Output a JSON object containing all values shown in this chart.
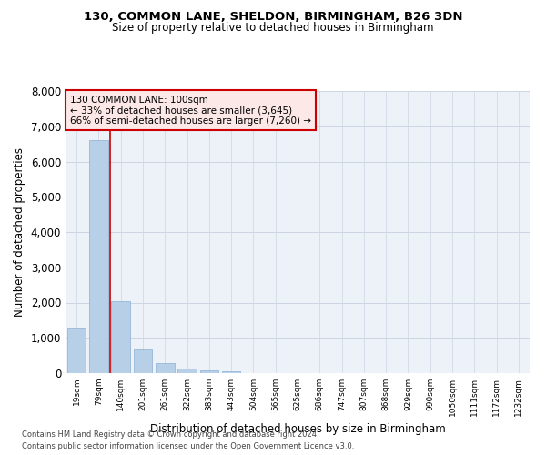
{
  "title1": "130, COMMON LANE, SHELDON, BIRMINGHAM, B26 3DN",
  "title2": "Size of property relative to detached houses in Birmingham",
  "xlabel": "Distribution of detached houses by size in Birmingham",
  "ylabel": "Number of detached properties",
  "footer1": "Contains HM Land Registry data © Crown copyright and database right 2024.",
  "footer2": "Contains public sector information licensed under the Open Government Licence v3.0.",
  "annotation_title": "130 COMMON LANE: 100sqm",
  "annotation_line1": "← 33% of detached houses are smaller (3,645)",
  "annotation_line2": "66% of semi-detached houses are larger (7,260) →",
  "bar_labels": [
    "19sqm",
    "79sqm",
    "140sqm",
    "201sqm",
    "261sqm",
    "322sqm",
    "383sqm",
    "443sqm",
    "504sqm",
    "565sqm",
    "625sqm",
    "686sqm",
    "747sqm",
    "807sqm",
    "868sqm",
    "929sqm",
    "990sqm",
    "1050sqm",
    "1111sqm",
    "1172sqm",
    "1232sqm"
  ],
  "bar_values": [
    1300,
    6600,
    2050,
    680,
    290,
    130,
    80,
    60,
    0,
    0,
    0,
    0,
    0,
    0,
    0,
    0,
    0,
    0,
    0,
    0,
    0
  ],
  "bar_color": "#b8cfe8",
  "bar_edge_color": "#8bafd4",
  "vline_color": "#cc0000",
  "ylim": [
    0,
    8000
  ],
  "yticks": [
    0,
    1000,
    2000,
    3000,
    4000,
    5000,
    6000,
    7000,
    8000
  ],
  "grid_color": "#ccd5e3",
  "bg_color": "#edf2f9",
  "annotation_box_facecolor": "#fde8e8",
  "annotation_box_edgecolor": "#cc0000",
  "vline_x_index": 1.5
}
